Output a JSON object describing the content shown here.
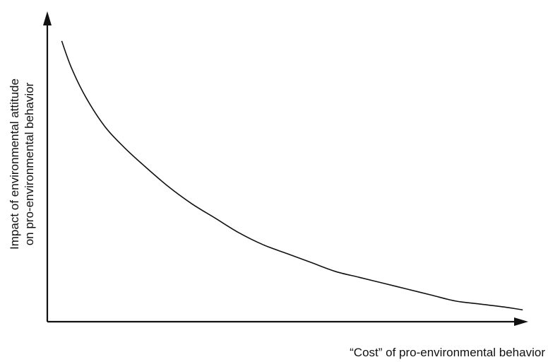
{
  "chart_data": {
    "type": "line",
    "title": "",
    "xlabel": "“Cost” of pro-environmental behavior",
    "ylabel_lines": [
      "Impact of environmental attitude",
      "on pro-environmental behavior"
    ],
    "xlim": [
      0,
      1
    ],
    "ylim": [
      0,
      1
    ],
    "grid": false,
    "ticks": false,
    "legend": "none",
    "series": [
      {
        "x": [
          0.03,
          0.05,
          0.08,
          0.12,
          0.16,
          0.2,
          0.25,
          0.3,
          0.35,
          0.4,
          0.45,
          0.5,
          0.55,
          0.6,
          0.65,
          0.7,
          0.75,
          0.8,
          0.85,
          0.9,
          0.95,
          0.99
        ],
        "y": [
          0.95,
          0.86,
          0.76,
          0.66,
          0.59,
          0.53,
          0.46,
          0.4,
          0.35,
          0.3,
          0.26,
          0.23,
          0.2,
          0.17,
          0.15,
          0.13,
          0.11,
          0.09,
          0.07,
          0.06,
          0.05,
          0.04
        ]
      }
    ],
    "colors": {
      "line": "#111111",
      "background": "#ffffff"
    }
  }
}
